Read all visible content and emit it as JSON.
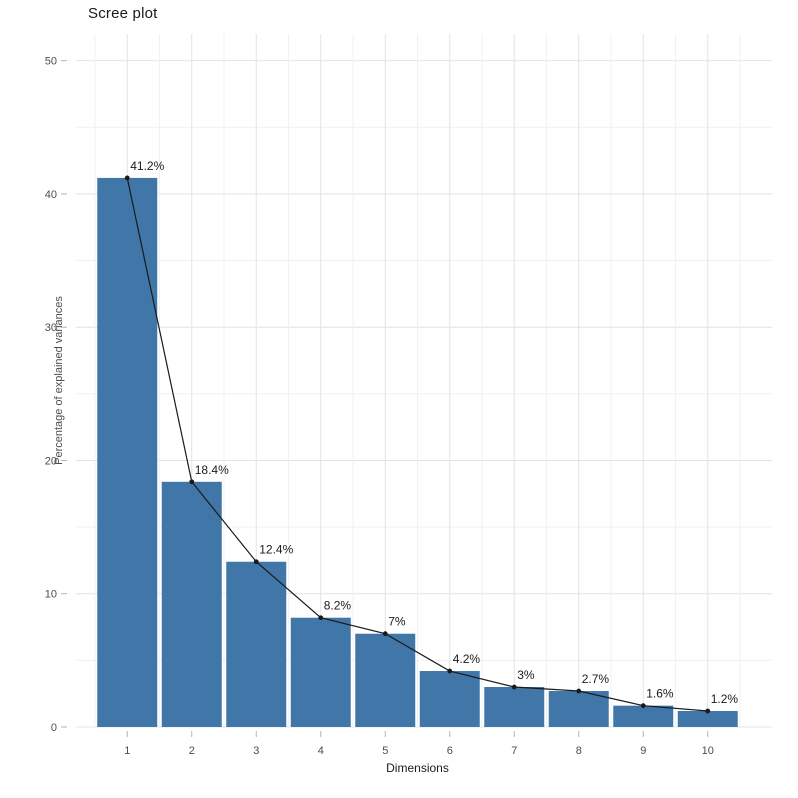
{
  "chart_data": {
    "type": "bar",
    "title": "Scree plot",
    "xlabel": "Dimensions",
    "ylabel": "Percentage of explained variances",
    "categories": [
      "1",
      "2",
      "3",
      "4",
      "5",
      "6",
      "7",
      "8",
      "9",
      "10"
    ],
    "values": [
      41.2,
      18.4,
      12.4,
      8.2,
      7,
      4.2,
      3,
      2.7,
      1.6,
      1.2
    ],
    "point_labels": [
      "41.2%",
      "18.4%",
      "12.4%",
      "8.2%",
      "7%",
      "4.2%",
      "3%",
      "2.7%",
      "1.6%",
      "1.2%"
    ],
    "y_ticks": [
      0,
      10,
      20,
      30,
      40,
      50
    ],
    "ylim": [
      0,
      52
    ],
    "grid": true,
    "legend_position": "none",
    "overlay": "line-with-points",
    "bar_color": "#4176a8",
    "line_color": "#1a1a1a",
    "point_color": "#1a1a1a",
    "grid_major_color": "#e4e4e4",
    "grid_minor_color": "#f1f1f1",
    "tick_mark_color": "#b3b3b3",
    "axis_text_color": "#4d4d4d",
    "axis_title_color": "#1a1a1a",
    "label_text_color": "#1a1a1a",
    "background_color": "#ffffff"
  }
}
